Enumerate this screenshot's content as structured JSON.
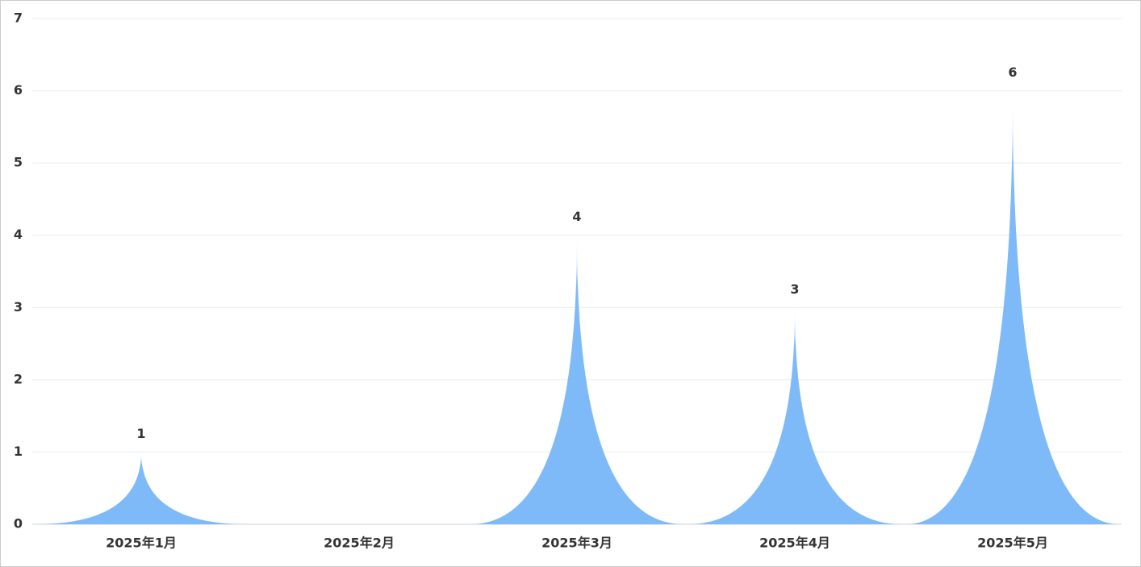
{
  "chart_data": {
    "type": "pictorial-spike",
    "categories": [
      "2025年1月",
      "2025年2月",
      "2025年3月",
      "2025年4月",
      "2025年5月"
    ],
    "values": [
      1,
      0,
      4,
      3,
      6
    ],
    "color": "#7fbaf8",
    "ylim": [
      0,
      7
    ],
    "yticks": [
      0,
      1,
      2,
      3,
      4,
      5,
      6,
      7
    ],
    "grid": true
  }
}
